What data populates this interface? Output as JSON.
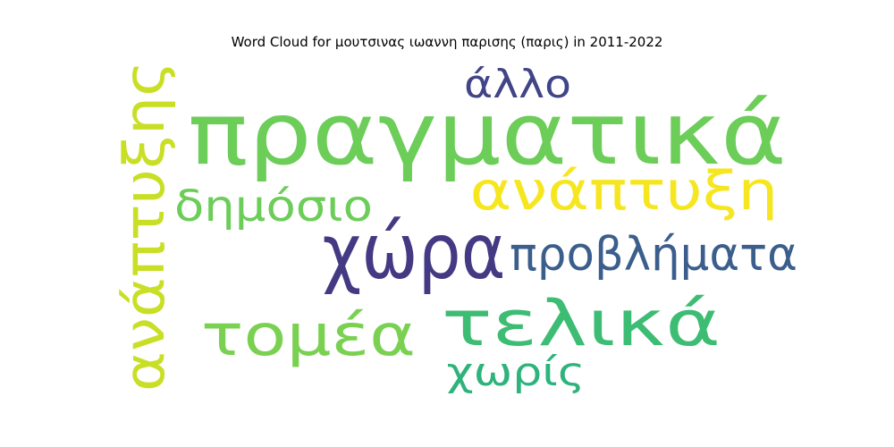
{
  "chart_data": {
    "type": "wordcloud",
    "title": "Word Cloud for μουτσινας ιωαννη παρισης (παρις) in 2011-2022",
    "words": [
      {
        "text": "πραγματικά",
        "color": "#6ccd59"
      },
      {
        "text": "ανάπτυξης",
        "color": "#c8df26"
      },
      {
        "text": "άλλο",
        "color": "#414487"
      },
      {
        "text": "ανάπτυξη",
        "color": "#f6e620"
      },
      {
        "text": "δημόσιο",
        "color": "#6ccd59"
      },
      {
        "text": "χώρα",
        "color": "#443983"
      },
      {
        "text": "προβλήματα",
        "color": "#3b5e8c"
      },
      {
        "text": "τομέα",
        "color": "#7ad151"
      },
      {
        "text": "τελικά",
        "color": "#3dbc74"
      },
      {
        "text": "χωρίς",
        "color": "#2eb37c"
      }
    ]
  }
}
